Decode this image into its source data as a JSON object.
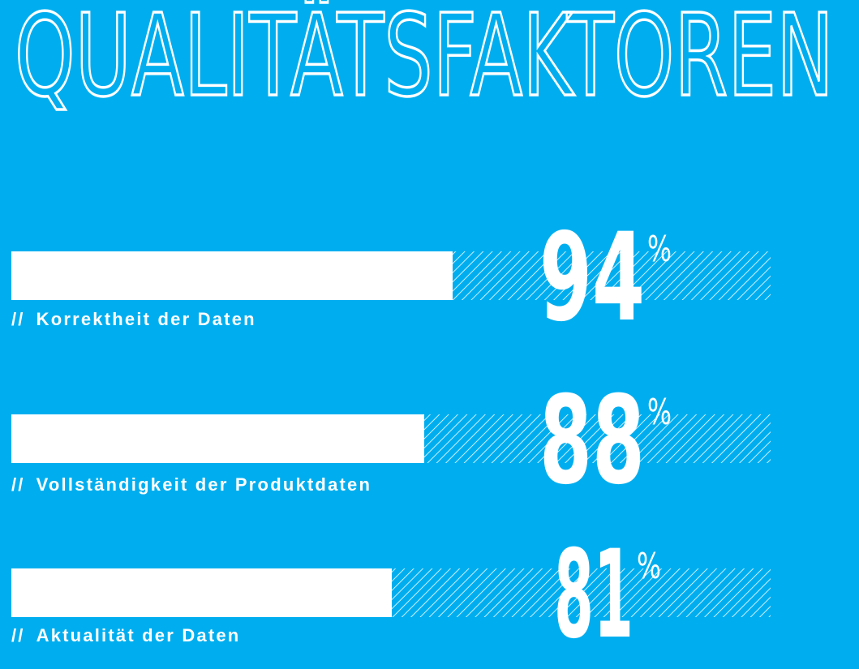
{
  "page": {
    "title": "QUALITÄTSFAKTOREN",
    "label_prefix": "//"
  },
  "colors": {
    "background": "#00AEEF",
    "bar": "#FFFFFF",
    "hatch": "#FFFFFF"
  },
  "chart_data": {
    "type": "bar",
    "orientation": "horizontal",
    "title": "QUALITÄTSFAKTOREN",
    "categories": [
      "Korrektheit der Daten",
      "Vollständigkeit der Produktdaten",
      "Aktualität der Daten"
    ],
    "values": [
      94,
      88,
      81
    ],
    "value_labels": [
      "94",
      "88",
      "81"
    ],
    "unit": "%",
    "xlim": [
      0,
      100
    ],
    "grid": false,
    "legend": "none"
  }
}
